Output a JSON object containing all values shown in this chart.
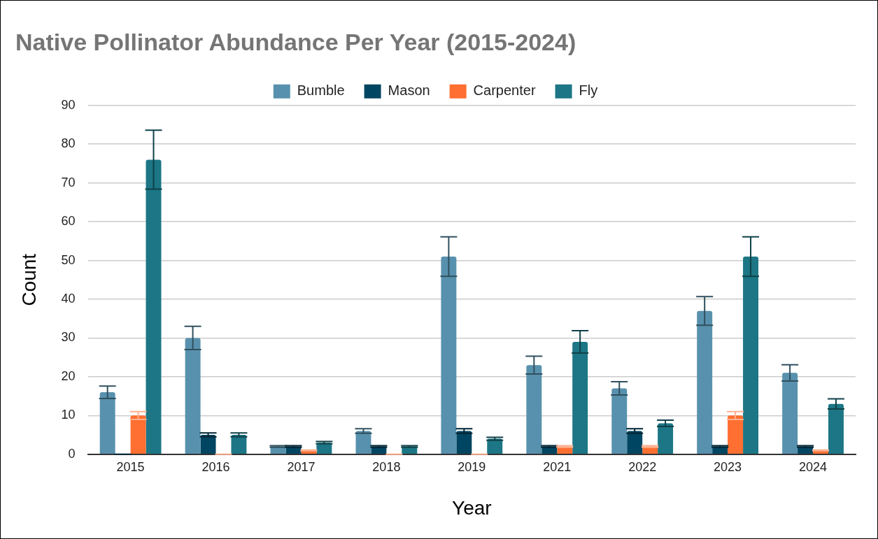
{
  "chart_data": {
    "type": "bar",
    "title": "Native Pollinator Abundance Per Year (2015-2024)",
    "xlabel": "Year",
    "ylabel": "Count",
    "categories": [
      "2015",
      "2016",
      "2017",
      "2018",
      "2019",
      "2021",
      "2022",
      "2023",
      "2024"
    ],
    "series": [
      {
        "name": "Bumble",
        "color": "#5891ad",
        "values": [
          16,
          30,
          2,
          6,
          51,
          23,
          17,
          37,
          21
        ],
        "errors": [
          1.6,
          3,
          0.2,
          0.6,
          5.1,
          2.3,
          1.7,
          3.7,
          2.1
        ]
      },
      {
        "name": "Mason",
        "color": "#004561",
        "values": [
          0,
          5,
          2,
          2,
          6,
          2,
          6,
          2,
          2
        ],
        "errors": [
          0,
          0.5,
          0.2,
          0.2,
          0.6,
          0.2,
          0.6,
          0.2,
          0.2
        ]
      },
      {
        "name": "Carpenter",
        "color": "#ff6f31",
        "values": [
          10,
          0,
          1,
          0,
          0,
          2,
          2,
          10,
          1
        ],
        "errors": [
          1,
          0,
          0.1,
          0,
          0,
          0.2,
          0.2,
          1,
          0.1
        ]
      },
      {
        "name": "Fly",
        "color": "#1c7685",
        "values": [
          76,
          5,
          3,
          2,
          4,
          29,
          8,
          51,
          13
        ],
        "errors": [
          7.6,
          0.5,
          0.3,
          0.2,
          0.4,
          2.9,
          0.8,
          5.1,
          1.3
        ]
      }
    ],
    "ylim": [
      0,
      90
    ],
    "yticks": [
      0,
      10,
      20,
      30,
      40,
      50,
      60,
      70,
      80,
      90
    ],
    "grid": "y",
    "legend": "top"
  }
}
